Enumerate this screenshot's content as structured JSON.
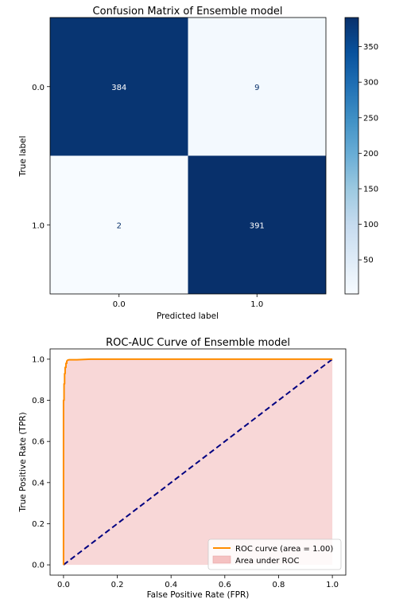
{
  "chart_data": [
    {
      "type": "heatmap",
      "title": "Confusion Matrix of Ensemble model",
      "xlabel": "Predicted label",
      "ylabel": "True label",
      "x_categories": [
        "0.0",
        "1.0"
      ],
      "y_categories": [
        "0.0",
        "1.0"
      ],
      "matrix": [
        [
          384,
          9
        ],
        [
          2,
          391
        ]
      ],
      "colormap": "Blues",
      "colorbar": {
        "ticks": [
          "350",
          "300",
          "250",
          "200",
          "150",
          "100",
          "50"
        ],
        "tick_values": [
          350,
          300,
          250,
          200,
          150,
          100,
          50
        ],
        "range": [
          2,
          391
        ]
      },
      "colors": {
        "high": "#08306b",
        "low": "#f7fbff",
        "text_on_dark": "#ffffff",
        "text_on_light": "#08306b"
      }
    },
    {
      "type": "line",
      "title": "ROC-AUC Curve of Ensemble model",
      "xlabel": "False Positive Rate (FPR)",
      "ylabel": "True Positive Rate (TPR)",
      "xlim": [
        -0.05,
        1.05
      ],
      "ylim": [
        -0.05,
        1.05
      ],
      "x_ticks": [
        "0.0",
        "0.2",
        "0.4",
        "0.6",
        "0.8",
        "1.0"
      ],
      "y_ticks": [
        "0.0",
        "0.2",
        "0.4",
        "0.6",
        "0.8",
        "1.0"
      ],
      "tick_values": [
        0,
        0.2,
        0.4,
        0.6,
        0.8,
        1.0
      ],
      "series": [
        {
          "name": "ROC curve (area = 1.00)",
          "color": "#ff8c00",
          "x": [
            0,
            0,
            0.002,
            0.002,
            0.004,
            0.004,
            0.006,
            0.006,
            0.009,
            0.009,
            0.012,
            0.012,
            0.015,
            0.02,
            0.05,
            0.1,
            0.5,
            1.0
          ],
          "y": [
            0,
            0.8,
            0.8,
            0.88,
            0.88,
            0.93,
            0.93,
            0.96,
            0.96,
            0.98,
            0.98,
            0.99,
            0.995,
            0.997,
            0.997,
            1.0,
            1.0,
            1.0
          ]
        },
        {
          "name": "",
          "color": "#000080",
          "style": "dashed",
          "x": [
            0,
            1
          ],
          "y": [
            0,
            1
          ]
        }
      ],
      "fill": {
        "name": "Area under ROC",
        "color": "#f5c1c1"
      },
      "legend": {
        "position": "lower-right",
        "items": [
          "ROC curve (area = 1.00)",
          "Area under ROC"
        ]
      }
    }
  ]
}
